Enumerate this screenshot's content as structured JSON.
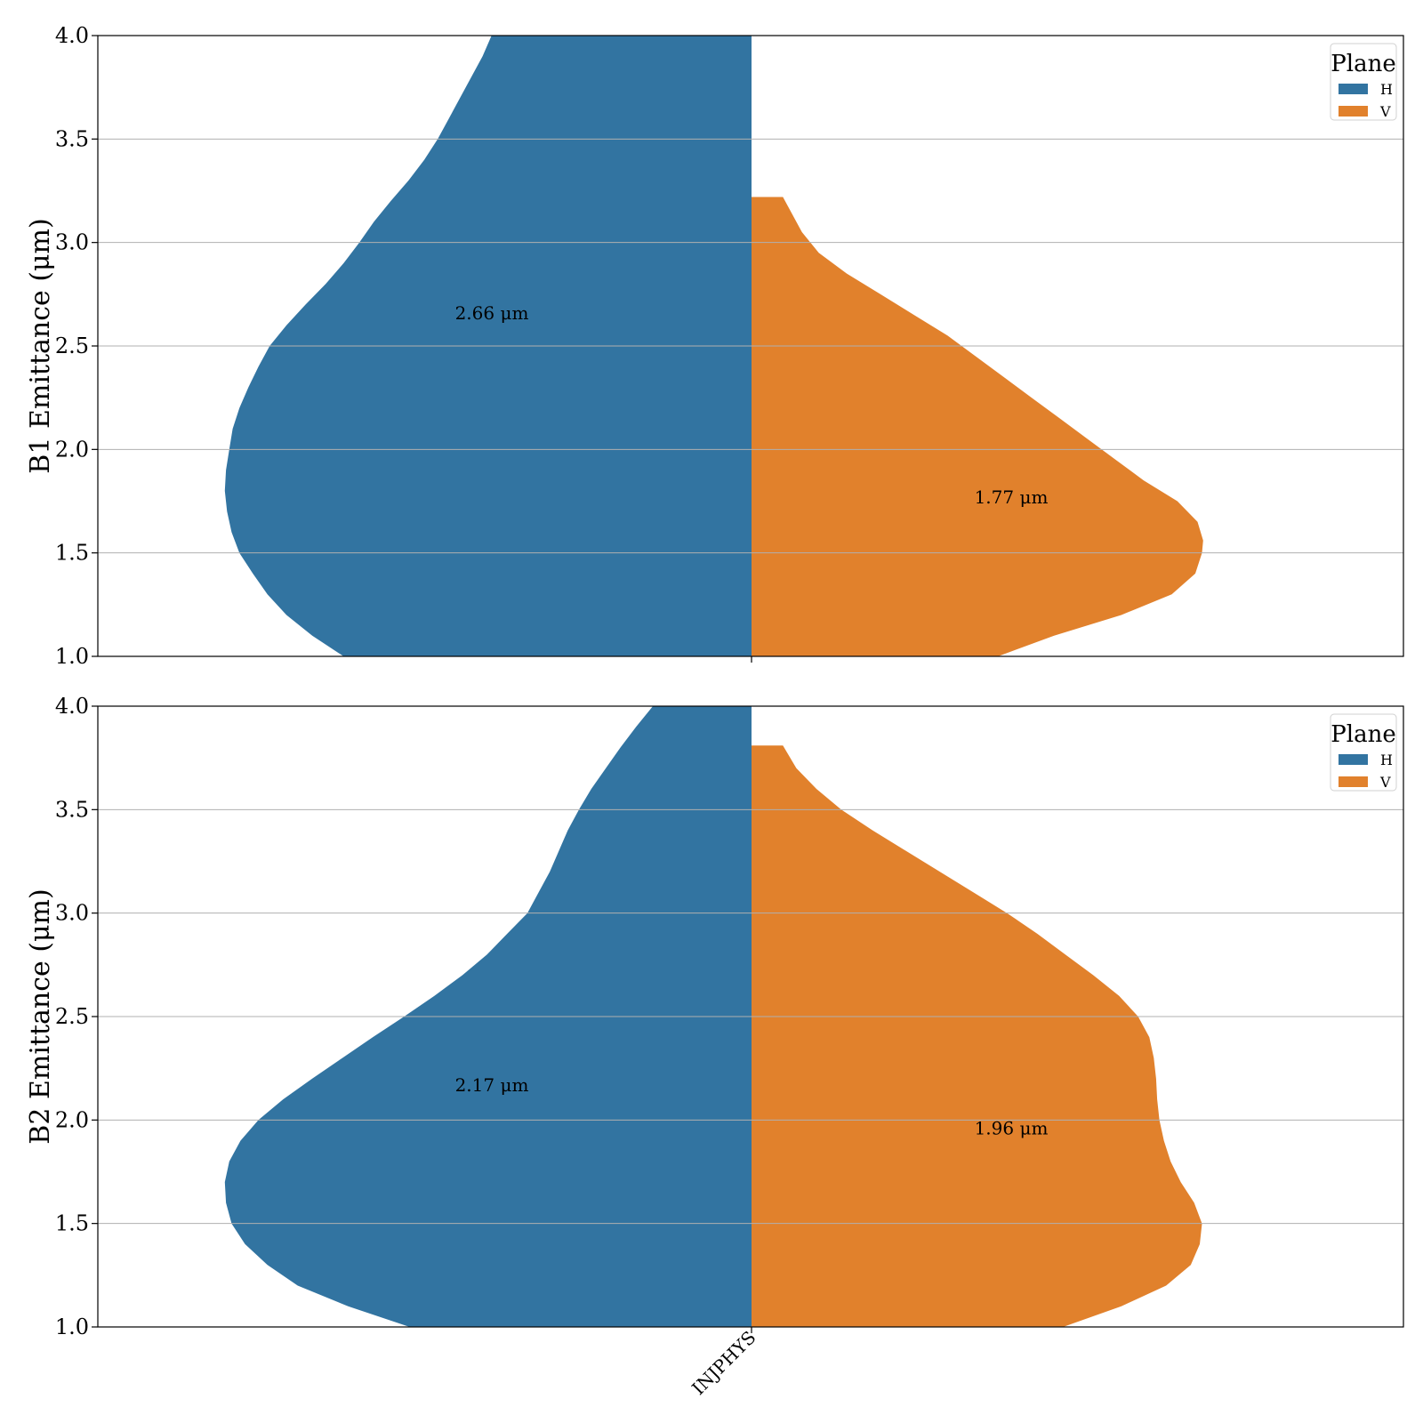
{
  "chart_data": [
    {
      "type": "violin",
      "split": true,
      "category": "INJPHYS",
      "ylabel": "B1 Emittance (μm)",
      "ylim": [
        1.0,
        4.0
      ],
      "yticks": [
        "1.0",
        "1.5",
        "2.0",
        "2.5",
        "3.0",
        "3.5",
        "4.0"
      ],
      "grid": "horizontal",
      "legend": {
        "title": "Plane",
        "placement": "top-right",
        "entries": [
          "H",
          "V"
        ]
      },
      "series": [
        {
          "name": "H",
          "color": "#3274a1",
          "annotation": "2.66 μm",
          "annotation_pos": [
            -0.2,
            2.66
          ],
          "profile": [
            [
              1.0,
              0.364
            ],
            [
              1.1,
              0.392
            ],
            [
              1.2,
              0.415
            ],
            [
              1.3,
              0.432
            ],
            [
              1.4,
              0.445
            ],
            [
              1.5,
              0.457
            ],
            [
              1.6,
              0.464
            ],
            [
              1.7,
              0.468
            ],
            [
              1.8,
              0.47
            ],
            [
              1.9,
              0.469
            ],
            [
              2.0,
              0.466
            ],
            [
              2.1,
              0.463
            ],
            [
              2.2,
              0.457
            ],
            [
              2.3,
              0.449
            ],
            [
              2.4,
              0.44
            ],
            [
              2.5,
              0.43
            ],
            [
              2.6,
              0.415
            ],
            [
              2.7,
              0.398
            ],
            [
              2.8,
              0.38
            ],
            [
              2.9,
              0.364
            ],
            [
              3.0,
              0.35
            ],
            [
              3.1,
              0.337
            ],
            [
              3.2,
              0.322
            ],
            [
              3.3,
              0.306
            ],
            [
              3.4,
              0.292
            ],
            [
              3.5,
              0.28
            ],
            [
              3.6,
              0.27
            ],
            [
              3.7,
              0.26
            ],
            [
              3.8,
              0.25
            ],
            [
              3.9,
              0.24
            ],
            [
              4.0,
              0.232
            ]
          ]
        },
        {
          "name": "V",
          "color": "#e1812c",
          "annotation": "1.77 μm",
          "annotation_pos": [
            0.2,
            1.77
          ],
          "profile": [
            [
              1.0,
              0.22
            ],
            [
              1.1,
              0.27
            ],
            [
              1.2,
              0.33
            ],
            [
              1.3,
              0.375
            ],
            [
              1.4,
              0.396
            ],
            [
              1.5,
              0.402
            ],
            [
              1.56,
              0.403
            ],
            [
              1.65,
              0.398
            ],
            [
              1.75,
              0.38
            ],
            [
              1.85,
              0.35
            ],
            [
              1.95,
              0.325
            ],
            [
              2.05,
              0.3
            ],
            [
              2.15,
              0.275
            ],
            [
              2.25,
              0.25
            ],
            [
              2.35,
              0.225
            ],
            [
              2.45,
              0.2
            ],
            [
              2.55,
              0.175
            ],
            [
              2.65,
              0.145
            ],
            [
              2.75,
              0.115
            ],
            [
              2.85,
              0.085
            ],
            [
              2.95,
              0.06
            ],
            [
              3.05,
              0.045
            ],
            [
              3.15,
              0.035
            ],
            [
              3.22,
              0.028
            ]
          ]
        }
      ]
    },
    {
      "type": "violin",
      "split": true,
      "category": "INJPHYS",
      "ylabel": "B2 Emittance (μm)",
      "ylim": [
        1.0,
        4.0
      ],
      "yticks": [
        "1.0",
        "1.5",
        "2.0",
        "2.5",
        "3.0",
        "3.5",
        "4.0"
      ],
      "grid": "horizontal",
      "legend": {
        "title": "Plane",
        "placement": "top-right",
        "entries": [
          "H",
          "V"
        ]
      },
      "series": [
        {
          "name": "H",
          "color": "#3274a1",
          "annotation": "2.17 μm",
          "annotation_pos": [
            -0.2,
            2.17
          ],
          "profile": [
            [
              1.0,
              0.305
            ],
            [
              1.1,
              0.36
            ],
            [
              1.2,
              0.405
            ],
            [
              1.3,
              0.432
            ],
            [
              1.4,
              0.452
            ],
            [
              1.5,
              0.464
            ],
            [
              1.6,
              0.469
            ],
            [
              1.7,
              0.47
            ],
            [
              1.8,
              0.466
            ],
            [
              1.9,
              0.456
            ],
            [
              2.0,
              0.44
            ],
            [
              2.1,
              0.418
            ],
            [
              2.2,
              0.392
            ],
            [
              2.3,
              0.365
            ],
            [
              2.4,
              0.338
            ],
            [
              2.5,
              0.31
            ],
            [
              2.6,
              0.283
            ],
            [
              2.7,
              0.258
            ],
            [
              2.8,
              0.236
            ],
            [
              2.9,
              0.218
            ],
            [
              3.0,
              0.2
            ],
            [
              3.1,
              0.19
            ],
            [
              3.2,
              0.18
            ],
            [
              3.3,
              0.172
            ],
            [
              3.4,
              0.164
            ],
            [
              3.5,
              0.154
            ],
            [
              3.6,
              0.143
            ],
            [
              3.7,
              0.13
            ],
            [
              3.8,
              0.117
            ],
            [
              3.9,
              0.103
            ],
            [
              4.0,
              0.088
            ]
          ]
        },
        {
          "name": "V",
          "color": "#e1812c",
          "annotation": "1.96 μm",
          "annotation_pos": [
            0.2,
            1.96
          ],
          "profile": [
            [
              1.0,
              0.278
            ],
            [
              1.1,
              0.33
            ],
            [
              1.2,
              0.37
            ],
            [
              1.3,
              0.392
            ],
            [
              1.4,
              0.4
            ],
            [
              1.5,
              0.402
            ],
            [
              1.6,
              0.395
            ],
            [
              1.7,
              0.383
            ],
            [
              1.8,
              0.374
            ],
            [
              1.9,
              0.368
            ],
            [
              2.0,
              0.364
            ],
            [
              2.1,
              0.362
            ],
            [
              2.2,
              0.361
            ],
            [
              2.3,
              0.359
            ],
            [
              2.4,
              0.355
            ],
            [
              2.5,
              0.345
            ],
            [
              2.6,
              0.328
            ],
            [
              2.7,
              0.305
            ],
            [
              2.8,
              0.28
            ],
            [
              2.9,
              0.255
            ],
            [
              3.0,
              0.228
            ],
            [
              3.1,
              0.198
            ],
            [
              3.2,
              0.168
            ],
            [
              3.3,
              0.138
            ],
            [
              3.4,
              0.108
            ],
            [
              3.5,
              0.08
            ],
            [
              3.6,
              0.058
            ],
            [
              3.7,
              0.04
            ],
            [
              3.81,
              0.028
            ]
          ]
        }
      ]
    }
  ]
}
